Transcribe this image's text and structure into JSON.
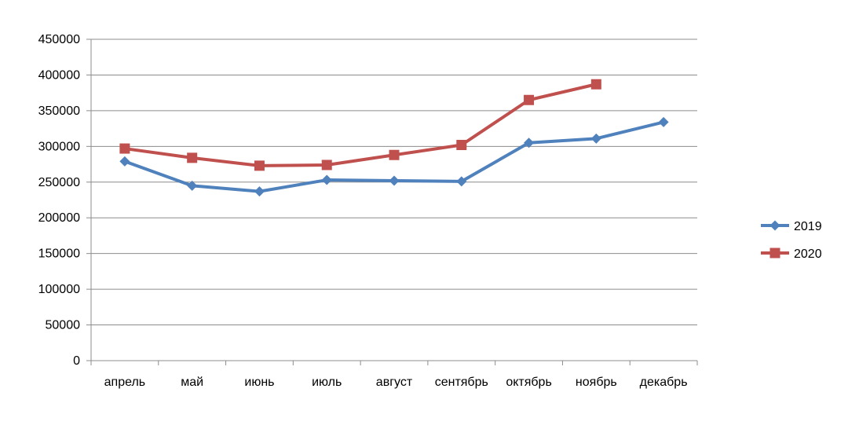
{
  "chart_data": {
    "type": "line",
    "title": "",
    "xlabel": "",
    "ylabel": "",
    "categories": [
      "апрель",
      "май",
      "июнь",
      "июль",
      "август",
      "сентябрь",
      "октябрь",
      "ноябрь",
      "декабрь"
    ],
    "ylim": [
      0,
      450000
    ],
    "yticks": [
      0,
      50000,
      100000,
      150000,
      200000,
      250000,
      300000,
      350000,
      400000,
      450000
    ],
    "ytick_labels": [
      "0",
      "50000",
      "100000",
      "150000",
      "200000",
      "250000",
      "300000",
      "350000",
      "400000",
      "450000"
    ],
    "grid": true,
    "legend_position": "right",
    "series": [
      {
        "name": "2019",
        "color": "#4f81bd",
        "marker": "diamond",
        "values": [
          279000,
          245000,
          237000,
          253000,
          252000,
          251000,
          305000,
          311000,
          334000
        ]
      },
      {
        "name": "2020",
        "color": "#c0504d",
        "marker": "square",
        "values": [
          297000,
          284000,
          273000,
          274000,
          288000,
          302000,
          365000,
          387000,
          null
        ]
      }
    ]
  }
}
